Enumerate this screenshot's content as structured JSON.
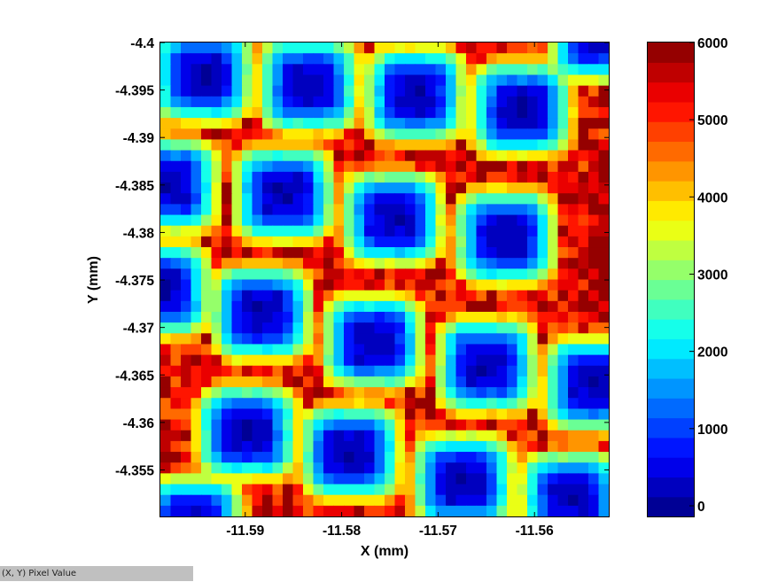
{
  "status_bar": {
    "text": "(X, Y)  Pixel Value"
  },
  "chart_data": {
    "type": "heatmap",
    "title": "",
    "xlabel": "X (mm)",
    "ylabel": "Y (mm)",
    "xlim": [
      -11.5988,
      -11.5523
    ],
    "ylim": [
      -4.4,
      -4.3501
    ],
    "y_direction": "reversed",
    "xticks": [
      -11.59,
      -11.58,
      -11.57,
      -11.56
    ],
    "xtick_labels": [
      "-11.59",
      "-11.58",
      "-11.57",
      "-11.56"
    ],
    "yticks": [
      -4.4,
      -4.395,
      -4.39,
      -4.385,
      -4.38,
      -4.375,
      -4.37,
      -4.365,
      -4.36,
      -4.355
    ],
    "ytick_labels": [
      "-4.4",
      "-4.395",
      "-4.39",
      "-4.385",
      "-4.38",
      "-4.375",
      "-4.37",
      "-4.365",
      "-4.36",
      "-4.355"
    ],
    "grid": false,
    "colorbar": {
      "position": "right",
      "range": [
        0,
        6000
      ],
      "ticks": [
        0,
        1000,
        2000,
        3000,
        4000,
        5000,
        6000
      ],
      "tick_labels": [
        "0",
        "1000",
        "2000",
        "3000",
        "4000",
        "5000",
        "6000"
      ],
      "colormap": "jet",
      "levels": 24
    },
    "pattern": {
      "description_values": "periodic lattice of low-intensity (~100-1500) rounded-square wells surrounded by high-intensity (~4500-6000) background",
      "well_centers": [
        {
          "x": -11.5944,
          "y": -4.3965
        },
        {
          "x": -11.5834,
          "y": -4.3955
        },
        {
          "x": -11.5724,
          "y": -4.3945
        },
        {
          "x": -11.5614,
          "y": -4.393
        },
        {
          "x": -11.598,
          "y": -4.385
        },
        {
          "x": -11.586,
          "y": -4.384
        },
        {
          "x": -11.5747,
          "y": -4.3815
        },
        {
          "x": -11.563,
          "y": -4.3795
        },
        {
          "x": -11.5988,
          "y": -4.374
        },
        {
          "x": -11.5883,
          "y": -4.3715
        },
        {
          "x": -11.5767,
          "y": -4.3685
        },
        {
          "x": -11.565,
          "y": -4.366
        },
        {
          "x": -11.5538,
          "y": -4.364
        },
        {
          "x": -11.5898,
          "y": -4.359
        },
        {
          "x": -11.5791,
          "y": -4.3568
        },
        {
          "x": -11.5674,
          "y": -4.3538
        },
        {
          "x": -11.5562,
          "y": -4.352
        },
        {
          "x": -11.5955,
          "y": -4.3493
        },
        {
          "x": -11.5533,
          "y": -4.4008
        }
      ],
      "well_min_value": 150,
      "background_value": 5300
    }
  }
}
